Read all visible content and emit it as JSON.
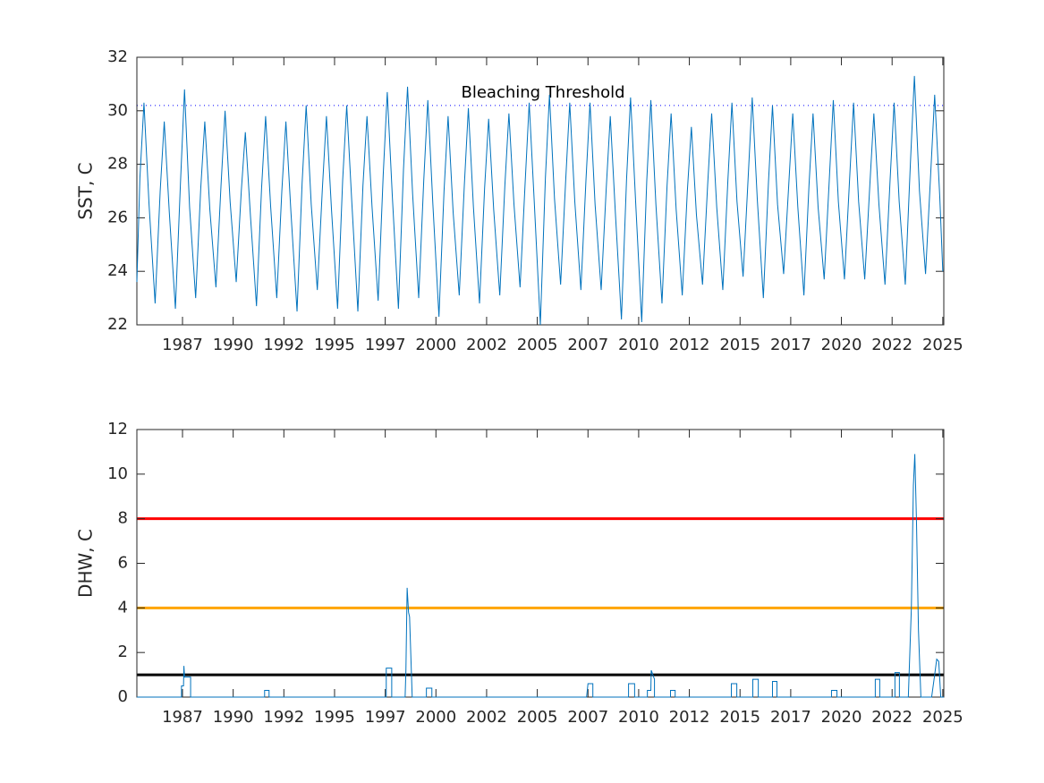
{
  "chart_data": [
    {
      "type": "line",
      "ylabel": "SST, C",
      "color": "#0072bd",
      "xlim": [
        1985.25,
        2025.05
      ],
      "ylim": [
        22,
        32
      ],
      "xticks": [
        {
          "value": 1987.5,
          "label": "1987"
        },
        {
          "value": 1990,
          "label": "1990"
        },
        {
          "value": 1992.5,
          "label": "1992"
        },
        {
          "value": 1995,
          "label": "1995"
        },
        {
          "value": 1997.5,
          "label": "1997"
        },
        {
          "value": 2000,
          "label": "2000"
        },
        {
          "value": 2002.5,
          "label": "2002"
        },
        {
          "value": 2005,
          "label": "2005"
        },
        {
          "value": 2007.5,
          "label": "2007"
        },
        {
          "value": 2010,
          "label": "2010"
        },
        {
          "value": 2012.5,
          "label": "2012"
        },
        {
          "value": 2015,
          "label": "2015"
        },
        {
          "value": 2017.5,
          "label": "2017"
        },
        {
          "value": 2020,
          "label": "2020"
        },
        {
          "value": 2022.5,
          "label": "2022"
        },
        {
          "value": 2025,
          "label": "2025"
        }
      ],
      "yticks": [
        22,
        24,
        26,
        28,
        30,
        32
      ],
      "reference_lines": [
        {
          "value": 30.2,
          "label": "Bleaching Threshold",
          "color": "#0000ff",
          "style": "dotted"
        }
      ],
      "x": [
        1985.25,
        1985.4,
        1985.6,
        1985.85,
        1986.15,
        1986.4,
        1986.6,
        1986.85,
        1987.15,
        1987.4,
        1987.6,
        1987.85,
        1988.15,
        1988.4,
        1988.6,
        1988.85,
        1989.15,
        1989.4,
        1989.6,
        1989.85,
        1990.15,
        1990.4,
        1990.6,
        1990.85,
        1991.15,
        1991.4,
        1991.6,
        1991.85,
        1992.15,
        1992.4,
        1992.6,
        1992.85,
        1993.15,
        1993.4,
        1993.6,
        1993.85,
        1994.15,
        1994.4,
        1994.6,
        1994.85,
        1995.15,
        1995.4,
        1995.6,
        1995.85,
        1996.15,
        1996.4,
        1996.6,
        1996.85,
        1997.15,
        1997.4,
        1997.6,
        1997.85,
        1998.15,
        1998.4,
        1998.6,
        1998.85,
        1999.15,
        1999.4,
        1999.6,
        1999.85,
        2000.15,
        2000.4,
        2000.6,
        2000.85,
        2001.15,
        2001.4,
        2001.6,
        2001.85,
        2002.15,
        2002.4,
        2002.6,
        2002.85,
        2003.15,
        2003.4,
        2003.6,
        2003.85,
        2004.15,
        2004.4,
        2004.6,
        2004.85,
        2005.15,
        2005.4,
        2005.6,
        2005.85,
        2006.15,
        2006.4,
        2006.6,
        2006.85,
        2007.15,
        2007.4,
        2007.6,
        2007.85,
        2008.15,
        2008.4,
        2008.6,
        2008.85,
        2009.15,
        2009.4,
        2009.6,
        2009.85,
        2010.15,
        2010.4,
        2010.6,
        2010.85,
        2011.15,
        2011.4,
        2011.6,
        2011.85,
        2012.15,
        2012.4,
        2012.6,
        2012.85,
        2013.15,
        2013.4,
        2013.6,
        2013.85,
        2014.15,
        2014.4,
        2014.6,
        2014.85,
        2015.15,
        2015.4,
        2015.6,
        2015.85,
        2016.15,
        2016.4,
        2016.6,
        2016.85,
        2017.15,
        2017.4,
        2017.6,
        2017.85,
        2018.15,
        2018.4,
        2018.6,
        2018.85,
        2019.15,
        2019.4,
        2019.6,
        2019.85,
        2020.15,
        2020.4,
        2020.6,
        2020.85,
        2021.15,
        2021.4,
        2021.6,
        2021.85,
        2022.15,
        2022.4,
        2022.6,
        2022.85,
        2023.15,
        2023.4,
        2023.6,
        2023.85,
        2024.15,
        2024.4,
        2024.6,
        2024.85,
        2025.0
      ],
      "values": [
        23.6,
        27.5,
        30.3,
        26.5,
        22.8,
        27.0,
        29.6,
        26.2,
        22.6,
        27.3,
        30.8,
        26.4,
        23.0,
        27.1,
        29.6,
        26.3,
        23.4,
        27.2,
        30.0,
        26.6,
        23.6,
        27.0,
        29.2,
        26.1,
        22.7,
        27.1,
        29.8,
        26.4,
        23.0,
        27.0,
        29.6,
        26.2,
        22.5,
        27.3,
        30.2,
        26.5,
        23.3,
        27.1,
        29.8,
        26.3,
        22.6,
        27.4,
        30.2,
        26.6,
        22.5,
        27.2,
        29.8,
        26.4,
        22.9,
        27.6,
        30.7,
        26.8,
        22.6,
        27.8,
        30.9,
        26.9,
        23.0,
        27.4,
        30.4,
        26.5,
        22.3,
        27.0,
        29.8,
        26.2,
        23.1,
        27.2,
        30.1,
        26.4,
        22.8,
        27.1,
        29.7,
        26.3,
        23.1,
        27.2,
        29.9,
        26.5,
        23.4,
        27.3,
        30.3,
        26.6,
        22.0,
        27.5,
        30.6,
        26.7,
        23.5,
        27.4,
        30.3,
        26.6,
        23.3,
        27.4,
        30.3,
        26.5,
        23.3,
        27.1,
        29.8,
        26.2,
        22.2,
        27.4,
        30.5,
        26.6,
        22.1,
        27.4,
        30.4,
        26.5,
        22.8,
        27.2,
        29.9,
        26.3,
        23.1,
        27.0,
        29.4,
        26.1,
        23.5,
        27.2,
        29.9,
        26.4,
        23.3,
        27.4,
        30.3,
        26.6,
        23.8,
        27.5,
        30.5,
        26.7,
        23.0,
        27.3,
        30.2,
        26.5,
        23.9,
        27.2,
        29.9,
        26.4,
        23.1,
        27.2,
        29.9,
        26.4,
        23.7,
        27.4,
        30.4,
        26.6,
        23.7,
        27.4,
        30.3,
        26.6,
        23.7,
        27.2,
        29.9,
        26.5,
        23.5,
        27.4,
        30.3,
        26.6,
        23.5,
        28.0,
        31.3,
        27.0,
        23.9,
        27.6,
        30.6,
        26.8,
        24.0
      ]
    },
    {
      "type": "line",
      "ylabel": "DHW, C",
      "color": "#0072bd",
      "xlim": [
        1985.25,
        2025.05
      ],
      "ylim": [
        0,
        12
      ],
      "xticks": [
        {
          "value": 1987.5,
          "label": "1987"
        },
        {
          "value": 1990,
          "label": "1990"
        },
        {
          "value": 1992.5,
          "label": "1992"
        },
        {
          "value": 1995,
          "label": "1995"
        },
        {
          "value": 1997.5,
          "label": "1997"
        },
        {
          "value": 2000,
          "label": "2000"
        },
        {
          "value": 2002.5,
          "label": "2002"
        },
        {
          "value": 2005,
          "label": "2005"
        },
        {
          "value": 2007.5,
          "label": "2007"
        },
        {
          "value": 2010,
          "label": "2010"
        },
        {
          "value": 2012.5,
          "label": "2012"
        },
        {
          "value": 2015,
          "label": "2015"
        },
        {
          "value": 2017.5,
          "label": "2017"
        },
        {
          "value": 2020,
          "label": "2020"
        },
        {
          "value": 2022.5,
          "label": "2022"
        },
        {
          "value": 2025,
          "label": "2025"
        }
      ],
      "yticks": [
        0,
        2,
        4,
        6,
        8,
        10,
        12
      ],
      "reference_lines": [
        {
          "value": 1,
          "color": "#000000"
        },
        {
          "value": 4,
          "color": "#ffa500"
        },
        {
          "value": 8,
          "color": "#ff0000"
        }
      ],
      "x": [
        1985.25,
        1987.45,
        1987.45,
        1987.55,
        1987.57,
        1987.6,
        1987.9,
        1987.9,
        1991.55,
        1991.55,
        1991.77,
        1991.77,
        1997.55,
        1997.55,
        1997.82,
        1997.82,
        1998.48,
        1998.52,
        1998.58,
        1998.65,
        1998.7,
        1998.83,
        1999.53,
        1999.53,
        1999.8,
        1999.8,
        2007.43,
        2007.5,
        2007.74,
        2007.74,
        2009.5,
        2009.5,
        2009.8,
        2009.8,
        2010.43,
        2010.43,
        2010.6,
        2010.62,
        2010.78,
        2010.78,
        2011.57,
        2011.57,
        2011.8,
        2011.8,
        2014.57,
        2014.57,
        2014.84,
        2014.84,
        2015.63,
        2015.63,
        2015.9,
        2015.9,
        2016.6,
        2016.6,
        2016.82,
        2016.82,
        2019.51,
        2019.51,
        2019.78,
        2019.78,
        2021.67,
        2021.67,
        2021.89,
        2021.89,
        2022.64,
        2022.64,
        2022.86,
        2022.86,
        2023.3,
        2023.45,
        2023.55,
        2023.62,
        2023.7,
        2023.8,
        2023.92,
        2024.45,
        2024.6,
        2024.7,
        2024.8,
        2024.9,
        2025.05
      ],
      "values": [
        0,
        0,
        0.5,
        0.5,
        1.4,
        0.9,
        0.9,
        0,
        0,
        0.3,
        0.3,
        0,
        0,
        1.3,
        1.3,
        0,
        0,
        1.2,
        4.9,
        3.8,
        3.6,
        0,
        0,
        0.4,
        0.4,
        0,
        0,
        0.6,
        0.6,
        0,
        0,
        0.6,
        0.6,
        0,
        0,
        0.3,
        0.3,
        1.2,
        0.8,
        0,
        0,
        0.3,
        0.3,
        0,
        0,
        0.6,
        0.6,
        0,
        0,
        0.8,
        0.8,
        0,
        0,
        0.7,
        0.7,
        0,
        0,
        0.3,
        0.3,
        0,
        0,
        0.8,
        0.8,
        0,
        0,
        1.1,
        1.1,
        0,
        0,
        4,
        9.5,
        10.9,
        8,
        3,
        0,
        0,
        1,
        1.7,
        1.6,
        0,
        0
      ]
    }
  ]
}
